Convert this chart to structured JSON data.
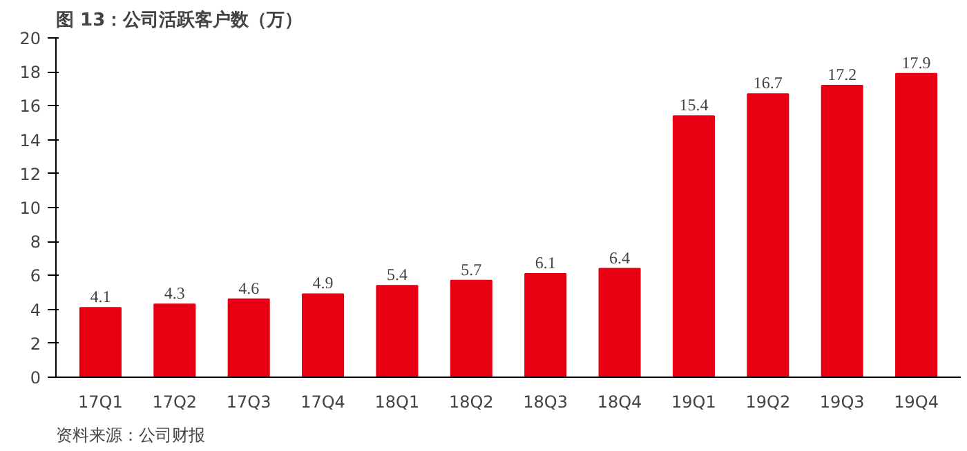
{
  "chart_data": {
    "type": "bar",
    "title": "图 13：公司活跃客户数（万）",
    "categories": [
      "17Q1",
      "17Q2",
      "17Q3",
      "17Q4",
      "18Q1",
      "18Q2",
      "18Q3",
      "18Q4",
      "19Q1",
      "19Q2",
      "19Q3",
      "19Q4"
    ],
    "values": [
      4.1,
      4.3,
      4.6,
      4.9,
      5.4,
      5.7,
      6.1,
      6.4,
      15.4,
      16.7,
      17.2,
      17.9
    ],
    "color": "#e60012",
    "ylim": [
      0,
      20
    ],
    "yticks": [
      0,
      2,
      4,
      6,
      8,
      10,
      12,
      14,
      16,
      18,
      20
    ],
    "grid": false,
    "data_labels": true,
    "annotations": [
      "资料来源：公司财报"
    ]
  }
}
